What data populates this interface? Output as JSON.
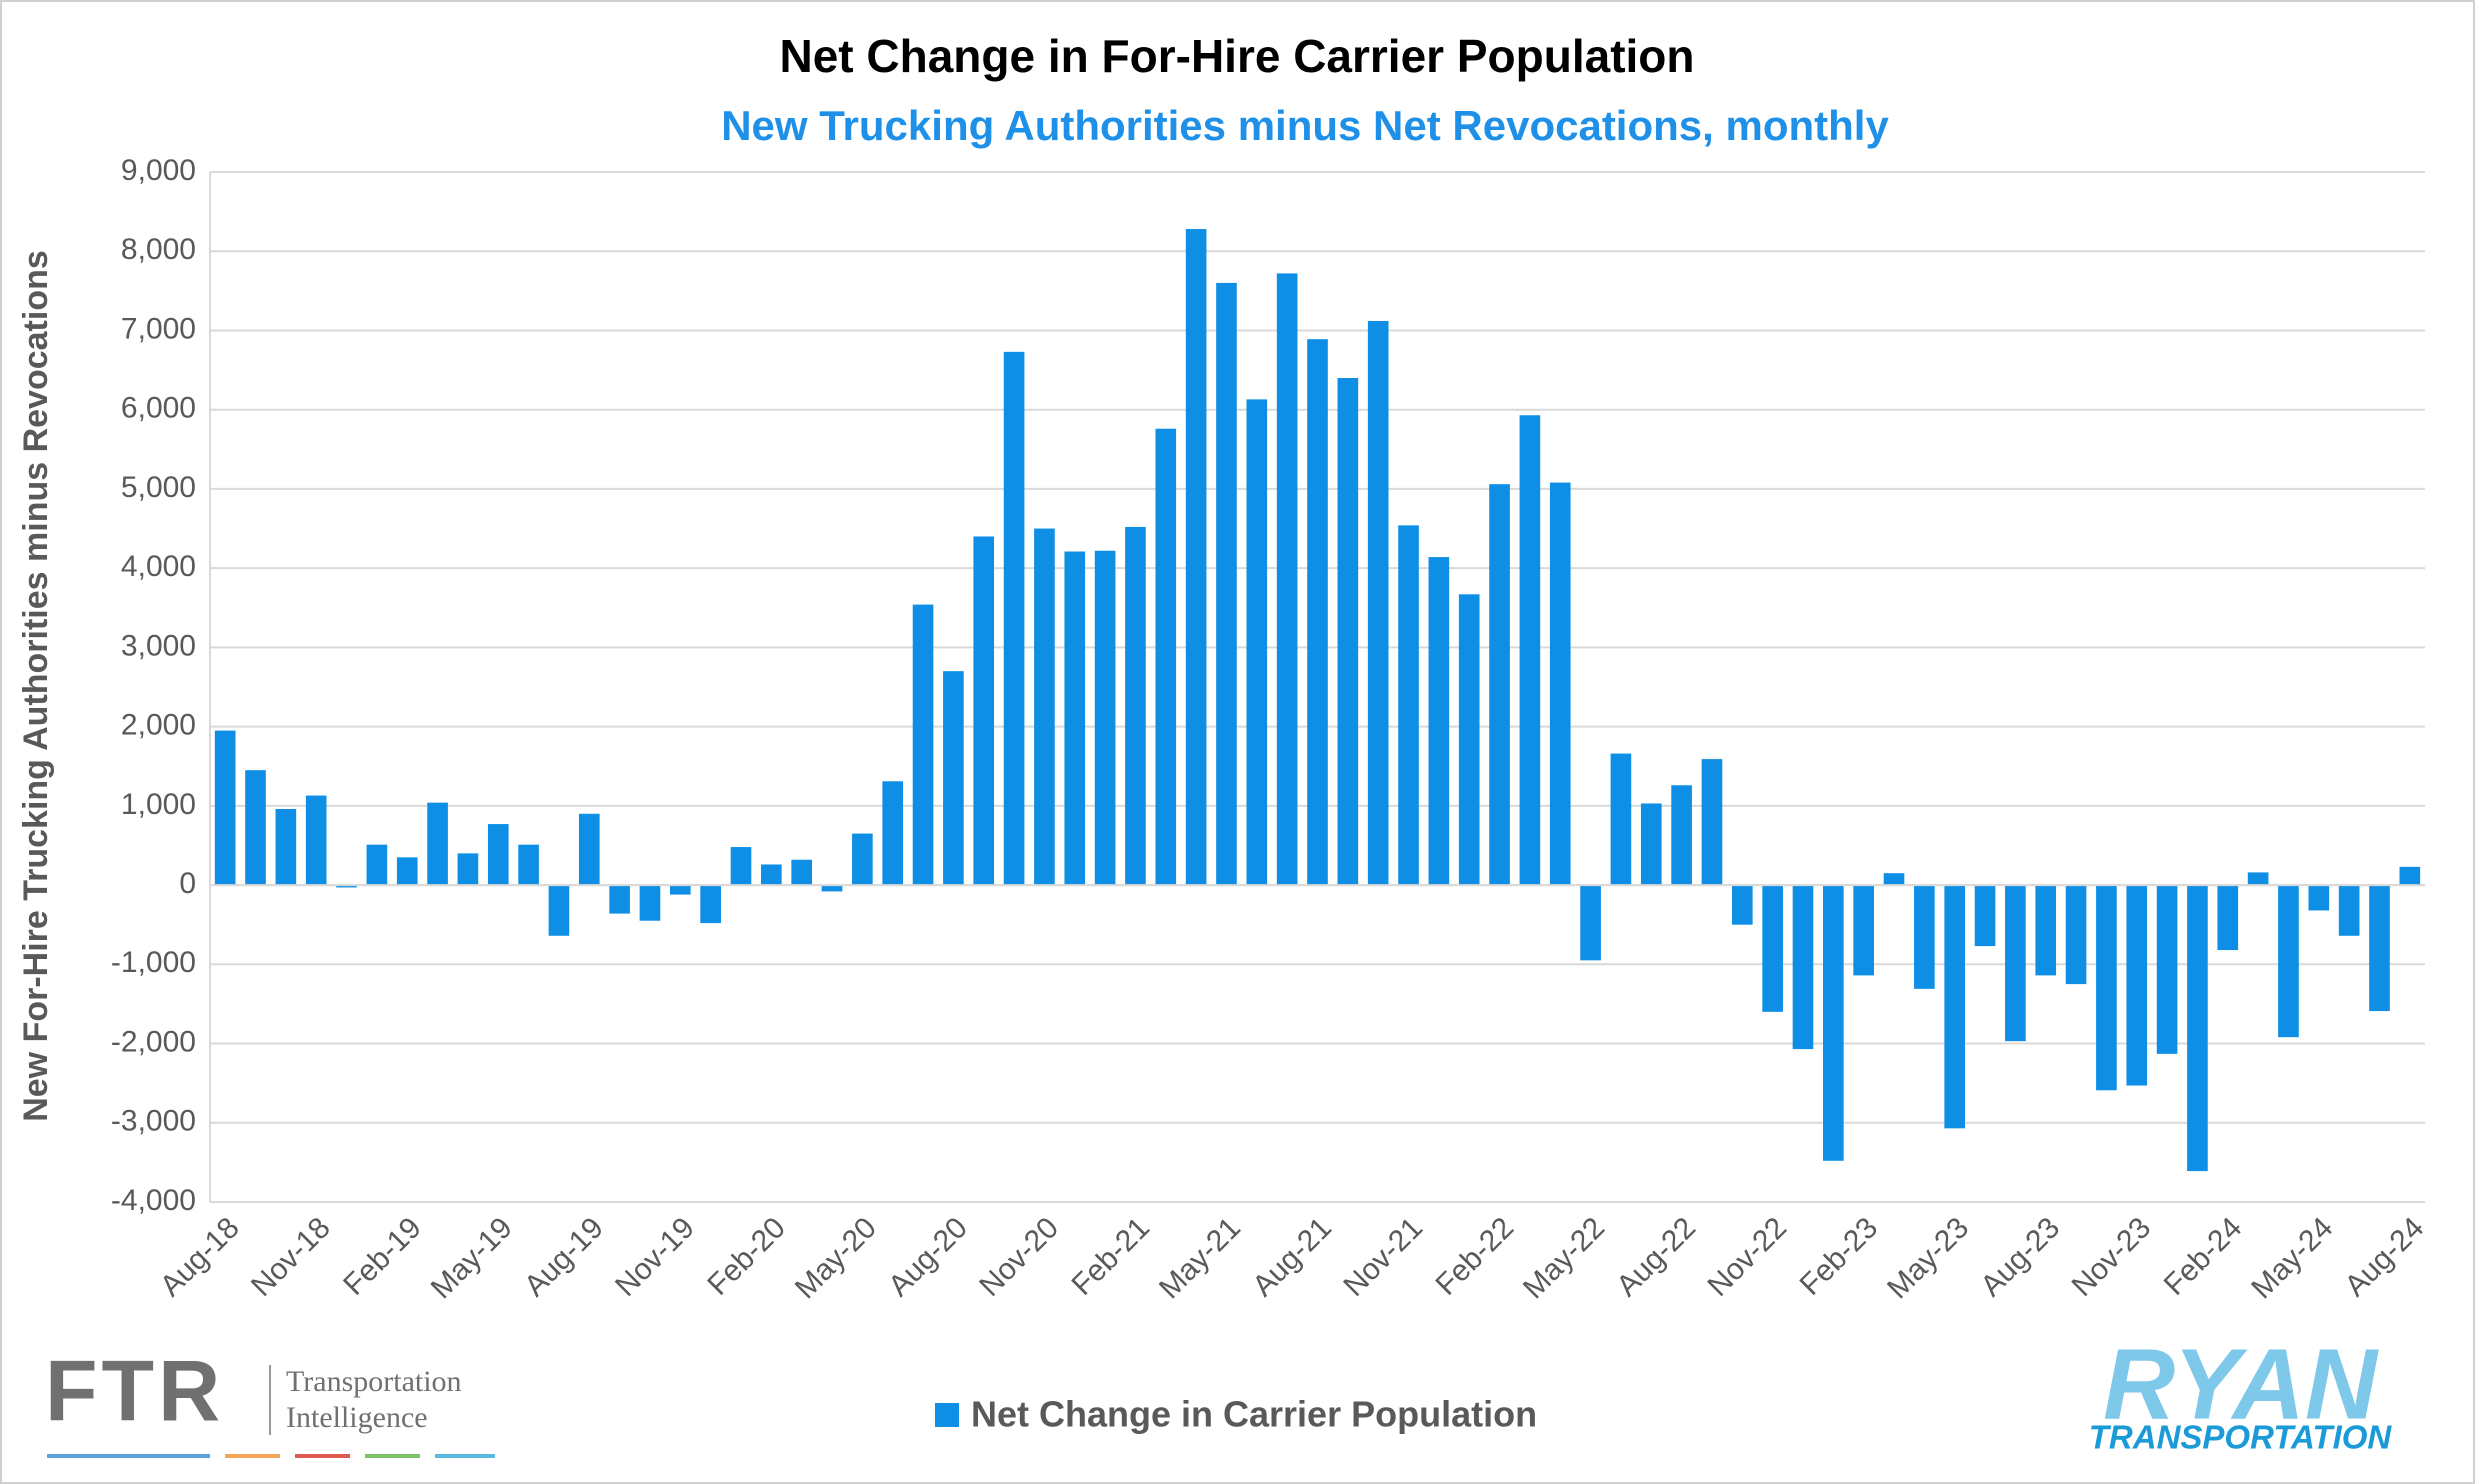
{
  "chart_data": {
    "type": "bar",
    "title": "Net Change in For-Hire Carrier Population",
    "subtitle": "New Trucking Authorities minus Net Revocations, monthly",
    "y_label": "New For-Hire Trucking Authorities minus Revocations",
    "categories": [
      "Aug-18",
      null,
      null,
      "Nov-18",
      null,
      null,
      "Feb-19",
      null,
      null,
      "May-19",
      null,
      null,
      "Aug-19",
      null,
      null,
      "Nov-19",
      null,
      null,
      "Feb-20",
      null,
      null,
      "May-20",
      null,
      null,
      "Aug-20",
      null,
      null,
      "Nov-20",
      null,
      null,
      "Feb-21",
      null,
      null,
      "May-21",
      null,
      null,
      "Aug-21",
      null,
      null,
      "Nov-21",
      null,
      null,
      "Feb-22",
      null,
      null,
      "May-22",
      null,
      null,
      "Aug-22",
      null,
      null,
      "Nov-22",
      null,
      null,
      "Feb-23",
      null,
      null,
      "May-23",
      null,
      null,
      "Aug-23",
      null,
      null,
      "Nov-23",
      null,
      null,
      "Feb-24",
      null,
      null,
      "May-24",
      null,
      null,
      "Aug-24"
    ],
    "series": [
      {
        "name": "Net Change in Carrier Population",
        "color": "#0e8fe5",
        "values": [
          1950,
          1450,
          960,
          1130,
          -30,
          510,
          350,
          1040,
          400,
          770,
          510,
          -640,
          900,
          -360,
          -450,
          -120,
          -480,
          480,
          260,
          320,
          -80,
          650,
          1310,
          3540,
          2700,
          4400,
          6730,
          4500,
          4210,
          4220,
          4520,
          5760,
          8280,
          7600,
          6130,
          7720,
          6890,
          6400,
          7120,
          4540,
          4140,
          3670,
          5060,
          5930,
          5080,
          -950,
          1660,
          1030,
          1260,
          1590,
          -500,
          -1600,
          -2070,
          -3480,
          -1140,
          150,
          -1310,
          -3070,
          -770,
          -1970,
          -1140,
          -1250,
          -2590,
          -2530,
          -2130,
          -3610,
          -820,
          160,
          -1920,
          -320,
          -640,
          -1590,
          230
        ]
      }
    ],
    "ylim": [
      -4000,
      9000
    ],
    "yticks": [
      {
        "value": -4000,
        "label": "-4,000"
      },
      {
        "value": -3000,
        "label": "-3,000"
      },
      {
        "value": -2000,
        "label": "-2,000"
      },
      {
        "value": -1000,
        "label": "-1,000"
      },
      0,
      {
        "value": 1000,
        "label": "1,000"
      },
      {
        "value": 2000,
        "label": "2,000"
      },
      {
        "value": 3000,
        "label": "3,000"
      },
      {
        "value": 4000,
        "label": "4,000"
      },
      {
        "value": 5000,
        "label": "5,000"
      },
      {
        "value": 6000,
        "label": "6,000"
      },
      {
        "value": 7000,
        "label": "7,000"
      },
      {
        "value": 8000,
        "label": "8,000"
      },
      {
        "value": 9000,
        "label": "9,000"
      }
    ],
    "grid": true,
    "legend": "bottom"
  },
  "logos": {
    "ftr": "FTR",
    "ftr_tagline": [
      "Transportation",
      "Intelligence"
    ],
    "ryan": "RYAN",
    "ryan_sub": "TRANSPORTATION"
  }
}
